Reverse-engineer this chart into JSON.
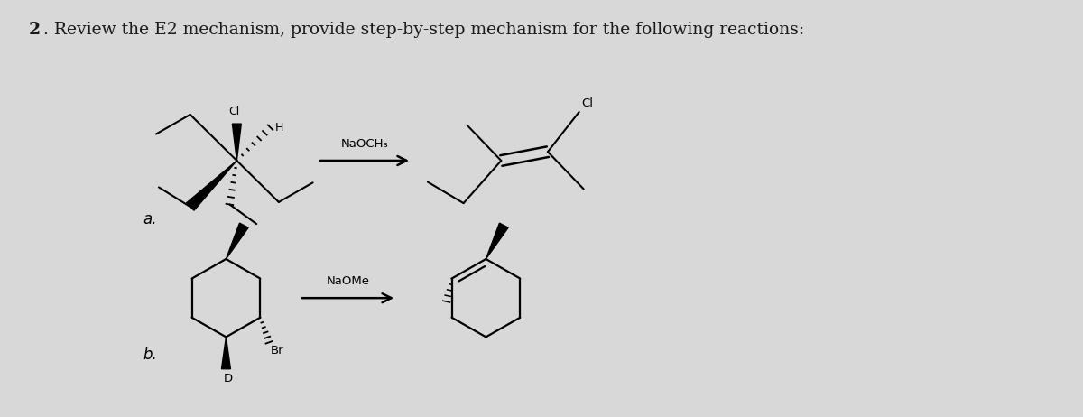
{
  "background_color": "#d8d8d8",
  "text_color": "#1a1a1a",
  "title_bold": "2",
  "title_rest": ". Review the E2 mechanism, provide step-by-step mechanism for the following reactions:",
  "title_fontsize": 13.5,
  "label_a": "a.",
  "label_b": "b.",
  "reagent_a": "NaOCH₃",
  "reagent_b": "NaOMe"
}
